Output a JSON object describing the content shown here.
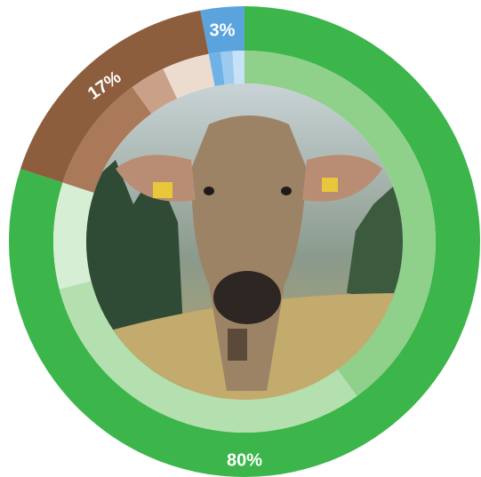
{
  "chart_data": {
    "type": "donut",
    "values": [
      80,
      17,
      3
    ],
    "value_labels": [
      "80%",
      "17%",
      "3%"
    ],
    "colors": [
      "#3cb54a",
      "#8d5e3e",
      "#5ba3dc"
    ],
    "inner_values": [
      40,
      31,
      9,
      10,
      3,
      4,
      1,
      1,
      1
    ],
    "inner_colors": [
      "#8fd08b",
      "#b3e0ae",
      "#d6eed3",
      "#a9795a",
      "#c9a189",
      "#ecdcd0",
      "#6fb3e6",
      "#9dcbf0",
      "#c7e2f7"
    ]
  }
}
